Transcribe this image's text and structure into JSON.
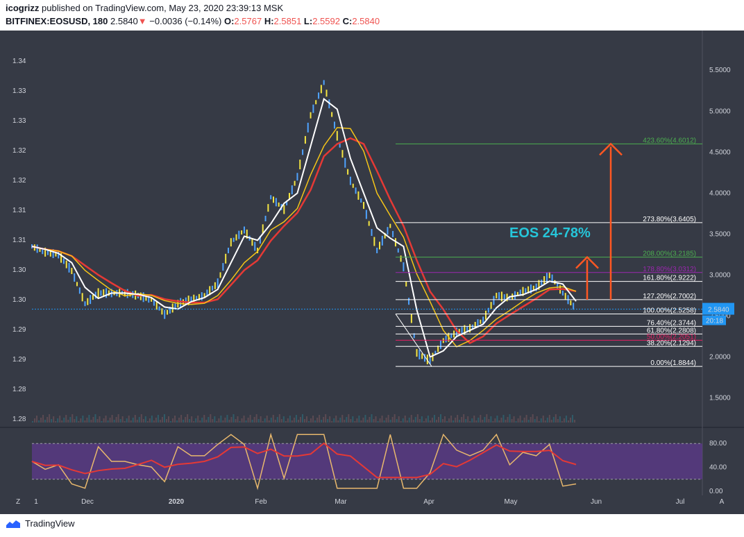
{
  "header": {
    "author": "icogrizz",
    "published_text": "published on TradingView.com, May 23, 2020 23:39:13 MSK",
    "symbol": "BITFINEX:EOSUSD, 180",
    "last": "2.5840",
    "change": "−0.0036 (−0.14%)",
    "o_label": "O:",
    "o_value": "2.5767",
    "h_label": "H:",
    "h_value": "2.5851",
    "l_label": "L:",
    "l_value": "2.5592",
    "c_label": "C:",
    "c_value": "2.5840"
  },
  "footer": {
    "logo_text": "TradingView"
  },
  "colors": {
    "background": "#363a45",
    "candle_up": "#4fa3ff",
    "candle_down": "#f5e642",
    "ma_white": "#ffffff",
    "ma_yellow": "#f5c518",
    "ma_red": "#e53935",
    "arrow": "#ff5722",
    "annotation": "#26c6da",
    "fib_white": "#ffffff",
    "fib_green": "#4caf50",
    "fib_purple": "#9c27b0",
    "fib_red": "#e91e63",
    "rsi_band": "#5e3a8c",
    "rsi_line": "#e8b86d",
    "rsi_ma": "#e53935"
  },
  "chart_data": {
    "type": "line",
    "title": "",
    "annotation": "EOS 24-78%",
    "left_axis_ticks": [
      "1.34",
      "1.33",
      "1.33",
      "1.32",
      "1.32",
      "1.31",
      "1.31",
      "1.30",
      "1.30",
      "1.29",
      "1.29",
      "1.28",
      "1.28"
    ],
    "right_axis_ticks": [
      "5.5000",
      "5.0000",
      "4.5000",
      "4.0000",
      "3.5000",
      "3.0000",
      "2.5000",
      "2.0000",
      "1.5000"
    ],
    "x_tick_labels": [
      "1",
      "Dec",
      "2020",
      "Feb",
      "Mar",
      "Apr",
      "May",
      "Jun",
      "Jul"
    ],
    "current_price_label": "2.5840",
    "countdown_label": "20:18",
    "ylim": [
      1.2,
      5.9
    ],
    "price_series": {
      "name": "",
      "x": [
        0,
        5,
        10,
        15,
        20,
        25,
        30,
        35,
        40,
        45,
        50,
        55,
        60,
        65,
        70,
        75,
        80,
        85,
        90,
        95,
        100,
        105,
        110,
        115,
        120,
        125,
        130,
        135,
        140,
        145,
        150,
        155,
        160,
        165,
        170,
        175,
        180,
        185,
        190,
        195,
        200,
        205
      ],
      "values": [
        3.35,
        3.28,
        3.25,
        3.05,
        2.65,
        2.78,
        2.78,
        2.78,
        2.75,
        2.7,
        2.52,
        2.65,
        2.7,
        2.75,
        2.9,
        3.4,
        3.55,
        3.3,
        3.95,
        3.8,
        4.2,
        4.95,
        5.35,
        4.7,
        4.15,
        3.85,
        3.3,
        3.6,
        3.1,
        2.05,
        1.95,
        2.2,
        2.3,
        2.35,
        2.45,
        2.75,
        2.72,
        2.8,
        2.85,
        3.0,
        2.78,
        2.58
      ]
    },
    "rsi": {
      "ticks": [
        "80.00",
        "40.00",
        "0.00"
      ],
      "ylim": [
        0,
        100
      ],
      "overbought": 80,
      "oversold": 20
    },
    "fib_levels": [
      {
        "label": "423.60%(4.6012)",
        "value": 4.6012,
        "color": "green"
      },
      {
        "label": "273.80%(3.6405)",
        "value": 3.6405,
        "color": "white"
      },
      {
        "label": "208.00%(3.2185)",
        "value": 3.2185,
        "color": "green"
      },
      {
        "label": "178.80%(3.0312)",
        "value": 3.0312,
        "color": "purple"
      },
      {
        "label": "161.80%(2.9222)",
        "value": 2.9222,
        "color": "white"
      },
      {
        "label": "127.20%(2.7002)",
        "value": 2.7002,
        "color": "white"
      },
      {
        "label": "100.00%(2.5258)",
        "value": 2.5258,
        "color": "white"
      },
      {
        "label": "76.40%(2.3744)",
        "value": 2.3744,
        "color": "white"
      },
      {
        "label": "61.80%(2.2808)",
        "value": 2.2808,
        "color": "white"
      },
      {
        "label": "50.00%(2.2051)",
        "value": 2.2051,
        "color": "red"
      },
      {
        "label": "38.20%(2.1294)",
        "value": 2.1294,
        "color": "white"
      },
      {
        "label": "0.00%(1.8844)",
        "value": 1.8844,
        "color": "white"
      }
    ]
  }
}
